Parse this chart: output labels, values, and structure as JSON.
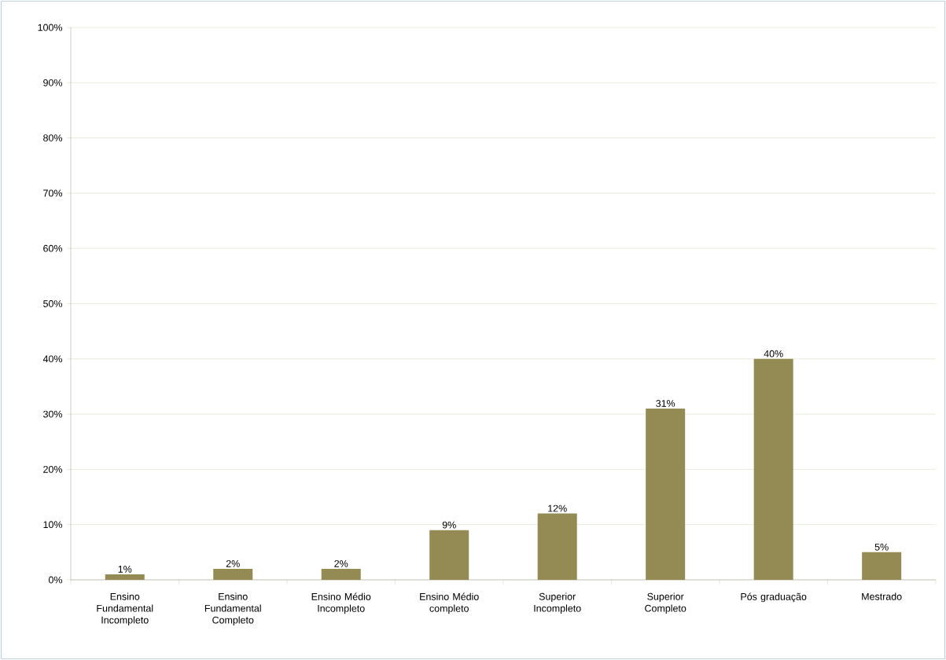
{
  "chart_data": {
    "type": "bar",
    "categories": [
      "Ensino Fundamental Incompleto",
      "Ensino Fundamental Completo",
      "Ensino Médio Incompleto",
      "Ensino Médio completo",
      "Superior Incompleto",
      "Superior Completo",
      "Pós graduação",
      "Mestrado"
    ],
    "values": [
      1,
      2,
      2,
      9,
      12,
      31,
      40,
      5
    ],
    "value_labels": [
      "1%",
      "2%",
      "2%",
      "9%",
      "12%",
      "31%",
      "40%",
      "5%"
    ],
    "color": "#948a54",
    "ylim": [
      0,
      100
    ],
    "yticks": [
      {
        "value": 0,
        "label": "0%"
      },
      {
        "value": 10,
        "label": "10%"
      },
      {
        "value": 20,
        "label": "20%"
      },
      {
        "value": 30,
        "label": "30%"
      },
      {
        "value": 40,
        "label": "40%"
      },
      {
        "value": 50,
        "label": "50%"
      },
      {
        "value": 60,
        "label": "60%"
      },
      {
        "value": 70,
        "label": "70%"
      },
      {
        "value": 80,
        "label": "80%"
      },
      {
        "value": 90,
        "label": "90%"
      },
      {
        "value": 100,
        "label": "100%"
      }
    ],
    "grid": "y"
  }
}
